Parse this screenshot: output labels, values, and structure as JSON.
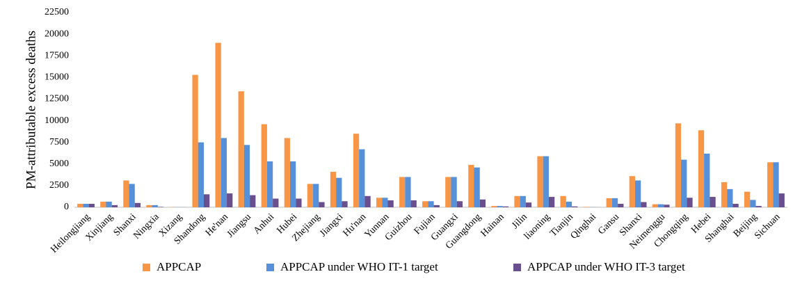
{
  "chart_data": {
    "type": "bar",
    "y_label": "PM-attributable excess deaths",
    "categories": [
      "Heilongjiang",
      "Xinjiang",
      "Shanxi",
      "Ningxia",
      "Xizang",
      "Shandong",
      "He'nan",
      "Jiangsu",
      "Anhui",
      "Hubei",
      "Zhejiang",
      "Jiangxi",
      "Hu'nan",
      "Yunnan",
      "Guizhou",
      "Fujian",
      "Guangxi",
      "Guangdong",
      "Hainan",
      "Jilin",
      "liaoning",
      "Tianjin",
      "Qinghai",
      "Gansu",
      "Shanxi",
      "Neimenggu",
      "Chongqing",
      "Hebei",
      "Shanghai",
      "Beijing",
      "Sichuan"
    ],
    "series": [
      {
        "name": "APPCAP",
        "color": "#f79646",
        "values": [
          400,
          650,
          3100,
          250,
          30,
          15300,
          19000,
          13400,
          9600,
          8000,
          2700,
          4100,
          8500,
          1100,
          3500,
          700,
          3500,
          4900,
          150,
          1300,
          5900,
          1300,
          50,
          1050,
          3600,
          350,
          9700,
          8900,
          2900,
          1800,
          5200
        ]
      },
      {
        "name": "APPCAP under WHO IT-1 target",
        "color": "#5590d8",
        "values": [
          400,
          650,
          2700,
          250,
          20,
          7500,
          8000,
          7200,
          5300,
          5300,
          2700,
          3400,
          6700,
          1100,
          3500,
          700,
          3500,
          4600,
          150,
          1300,
          5900,
          650,
          30,
          1050,
          3100,
          350,
          5500,
          6200,
          2100,
          850,
          5200
        ]
      },
      {
        "name": "APPCAP under WHO IT-3 target",
        "color": "#6a4f8f",
        "values": [
          400,
          250,
          500,
          50,
          10,
          1500,
          1600,
          1400,
          1000,
          1000,
          600,
          700,
          1300,
          800,
          800,
          250,
          700,
          900,
          100,
          550,
          1200,
          100,
          10,
          400,
          600,
          300,
          1100,
          1200,
          400,
          150,
          1600
        ]
      }
    ],
    "ylim": [
      0,
      22500
    ],
    "yticks": [
      0,
      2500,
      5000,
      7500,
      10000,
      12500,
      15000,
      17500,
      20000,
      22500
    ],
    "grid": false,
    "legend": "bottom"
  }
}
